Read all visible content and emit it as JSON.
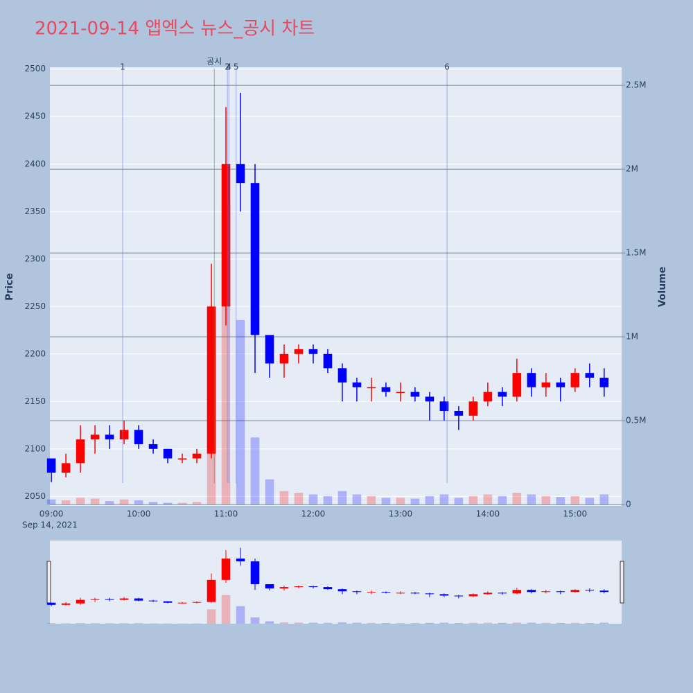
{
  "chart_data": {
    "type": "candlestick",
    "title": "2021-09-14 앱엑스 뉴스_공시 차트",
    "ylabel": "Price",
    "y2label": "Volume",
    "x": [
      "2021-09-14 09:00",
      "2021-09-14 09:10",
      "2021-09-14 09:20",
      "2021-09-14 09:30",
      "2021-09-14 09:40",
      "2021-09-14 09:50",
      "2021-09-14 10:00",
      "2021-09-14 10:10",
      "2021-09-14 10:20",
      "2021-09-14 10:30",
      "2021-09-14 10:40",
      "2021-09-14 10:50",
      "2021-09-14 11:00",
      "2021-09-14 11:10",
      "2021-09-14 11:20",
      "2021-09-14 11:30",
      "2021-09-14 11:40",
      "2021-09-14 11:50",
      "2021-09-14 12:00",
      "2021-09-14 12:10",
      "2021-09-14 12:20",
      "2021-09-14 12:30",
      "2021-09-14 12:40",
      "2021-09-14 12:50",
      "2021-09-14 13:00",
      "2021-09-14 13:10",
      "2021-09-14 13:20",
      "2021-09-14 13:30",
      "2021-09-14 13:40",
      "2021-09-14 13:50",
      "2021-09-14 14:00",
      "2021-09-14 14:10",
      "2021-09-14 14:20",
      "2021-09-14 14:30",
      "2021-09-14 14:40",
      "2021-09-14 14:50",
      "2021-09-14 15:00",
      "2021-09-14 15:10",
      "2021-09-14 15:20"
    ],
    "open": [
      2090,
      2075,
      2085,
      2110,
      2115,
      2110,
      2120,
      2105,
      2100,
      2090,
      2090,
      2095,
      2250,
      2400,
      2380,
      2220,
      2190,
      2200,
      2205,
      2200,
      2185,
      2170,
      2165,
      2165,
      2160,
      2160,
      2155,
      2150,
      2140,
      2135,
      2150,
      2160,
      2155,
      2180,
      2165,
      2170,
      2165,
      2180,
      2175
    ],
    "high": [
      2090,
      2095,
      2125,
      2125,
      2125,
      2130,
      2125,
      2110,
      2100,
      2095,
      2100,
      2295,
      2460,
      2475,
      2400,
      2220,
      2210,
      2210,
      2210,
      2205,
      2190,
      2175,
      2175,
      2170,
      2170,
      2165,
      2160,
      2155,
      2145,
      2155,
      2170,
      2165,
      2195,
      2185,
      2180,
      2175,
      2185,
      2190,
      2185
    ],
    "low": [
      2065,
      2070,
      2075,
      2095,
      2100,
      2105,
      2100,
      2095,
      2085,
      2085,
      2085,
      2090,
      2230,
      2350,
      2180,
      2175,
      2175,
      2190,
      2190,
      2180,
      2150,
      2150,
      2150,
      2155,
      2150,
      2150,
      2130,
      2130,
      2120,
      2130,
      2145,
      2145,
      2150,
      2155,
      2155,
      2150,
      2160,
      2165,
      2155
    ],
    "close": [
      2075,
      2085,
      2110,
      2115,
      2110,
      2120,
      2105,
      2100,
      2090,
      2090,
      2095,
      2250,
      2400,
      2380,
      2220,
      2190,
      2200,
      2205,
      2200,
      2185,
      2170,
      2165,
      2165,
      2160,
      2160,
      2155,
      2150,
      2140,
      2135,
      2150,
      2160,
      2155,
      2180,
      2165,
      2170,
      2165,
      2180,
      2175,
      2165
    ],
    "volume": [
      30000,
      25000,
      40000,
      35000,
      20000,
      30000,
      25000,
      15000,
      10000,
      10000,
      15000,
      900000,
      1800000,
      1100000,
      400000,
      150000,
      80000,
      70000,
      60000,
      50000,
      80000,
      60000,
      50000,
      40000,
      40000,
      35000,
      50000,
      60000,
      40000,
      50000,
      60000,
      50000,
      70000,
      60000,
      50000,
      45000,
      50000,
      40000,
      60000
    ],
    "increasing_color": "#ff0000",
    "decreasing_color": "#0000ff",
    "xlim": [
      "2021-09-14 08:59",
      "2021-09-14 15:32"
    ],
    "xticks": [
      {
        "value": "2021-09-14 09:00",
        "label": "09:00"
      },
      {
        "value": "2021-09-14 10:00",
        "label": "10:00"
      },
      {
        "value": "2021-09-14 11:00",
        "label": "11:00"
      },
      {
        "value": "2021-09-14 12:00",
        "label": "12:00"
      },
      {
        "value": "2021-09-14 13:00",
        "label": "13:00"
      },
      {
        "value": "2021-09-14 14:00",
        "label": "14:00"
      },
      {
        "value": "2021-09-14 15:00",
        "label": "15:00"
      }
    ],
    "x_date_label": "Sep 14, 2021",
    "ylim": [
      2040,
      2502
    ],
    "yticks": [
      2050,
      2100,
      2150,
      2200,
      2250,
      2300,
      2350,
      2400,
      2450,
      2500
    ],
    "y2lim": [
      0,
      2608000
    ],
    "y2ticks": [
      0,
      {
        "value": 500000,
        "label": "0.5M"
      },
      {
        "value": 1000000,
        "label": "1M"
      },
      {
        "value": 1500000,
        "label": "1.5M"
      },
      {
        "value": 2000000,
        "label": "2M"
      },
      {
        "value": 2500000,
        "label": "2.5M"
      }
    ],
    "annotations": [
      {
        "label": "1",
        "x": "2021-09-14 09:49"
      },
      {
        "label": "공시",
        "x": "2021-09-14 10:52"
      },
      {
        "label": "2",
        "x": "2021-09-14 11:01"
      },
      {
        "label": "4",
        "x": "2021-09-14 11:02"
      },
      {
        "label": "5",
        "x": "2021-09-14 11:07"
      },
      {
        "label": "6",
        "x": "2021-09-14 13:32"
      }
    ]
  }
}
